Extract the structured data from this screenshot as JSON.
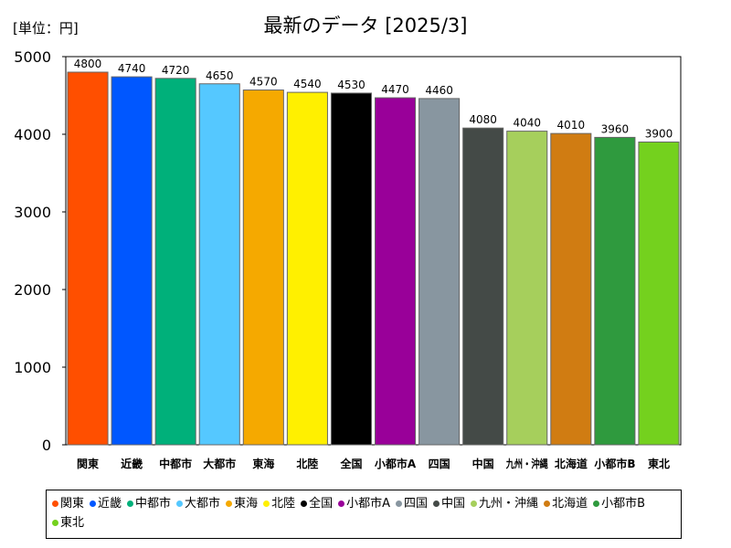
{
  "title": "最新のデータ [2025/3]",
  "unit_label": "[単位：円]",
  "chart_data": {
    "type": "bar",
    "ylim": [
      0,
      5000
    ],
    "yticks": [
      0,
      1000,
      2000,
      3000,
      4000,
      5000
    ],
    "grid": false,
    "legend": "bottom",
    "categories": [
      "関東",
      "近畿",
      "中都市",
      "大都市",
      "東海",
      "北陸",
      "全国",
      "小都市A",
      "四国",
      "中国",
      "九州・沖縄",
      "北海道",
      "小都市B",
      "東北"
    ],
    "tick_labels": [
      "関東",
      "近畿",
      "中都市",
      "大都市",
      "東海",
      "北陸",
      "全国",
      "小都市A",
      "四国",
      "中国",
      "九州・沖縄",
      "北海道",
      "小都市B",
      "東北"
    ],
    "values": [
      4800,
      4740,
      4720,
      4650,
      4570,
      4540,
      4530,
      4470,
      4460,
      4080,
      4040,
      4010,
      3960,
      3900
    ],
    "colors": [
      "#ff4f00",
      "#0057ff",
      "#00b07a",
      "#55c8ff",
      "#f5a900",
      "#fff000",
      "#000000",
      "#990099",
      "#8896a0",
      "#444a47",
      "#a6cf5c",
      "#d07c12",
      "#2f9a3e",
      "#74d11e"
    ]
  },
  "legend_items": [
    "関東",
    "近畿",
    "中都市",
    "大都市",
    "東海",
    "北陸",
    "全国",
    "小都市A",
    "四国",
    "中国",
    "九州・沖縄",
    "北海道",
    "小都市B",
    "東北"
  ]
}
